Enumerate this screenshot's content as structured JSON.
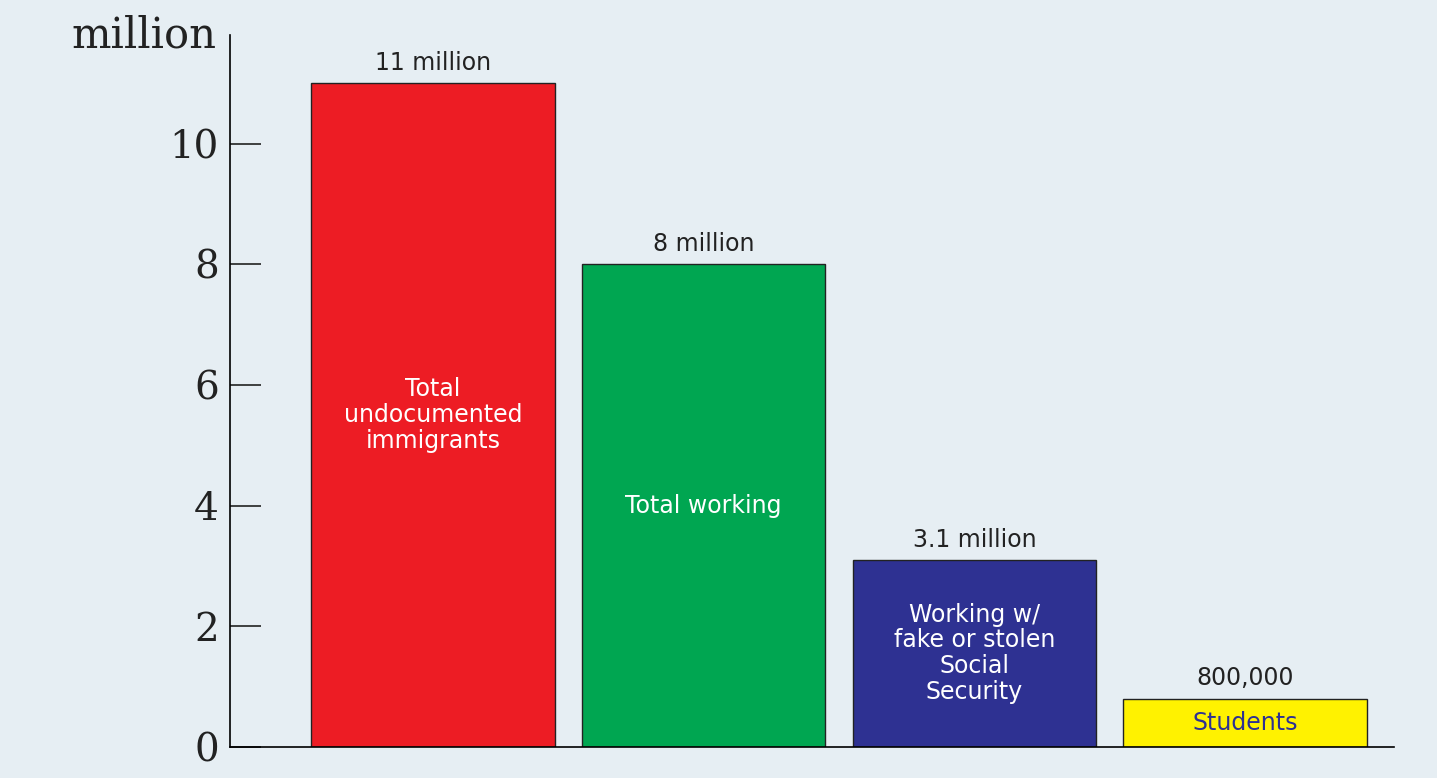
{
  "chart_data": {
    "type": "bar",
    "y_label": "million",
    "categories": [
      "Total undocumented immigrants",
      "Total working",
      "Working w/ fake or stolen Social Security",
      "Students"
    ],
    "values": [
      11,
      8,
      3.1,
      0.8
    ],
    "value_labels": [
      "11 million",
      "8 million",
      "3.1 million",
      "800,000"
    ],
    "colors": [
      "#ed1c24",
      "#00a651",
      "#2e3192",
      "#fff200"
    ],
    "ylim": [
      0,
      11.8
    ],
    "yticks": [
      0,
      2,
      4,
      6,
      8,
      10
    ],
    "data_labels": true,
    "tick_labels": "y",
    "grid": false
  }
}
